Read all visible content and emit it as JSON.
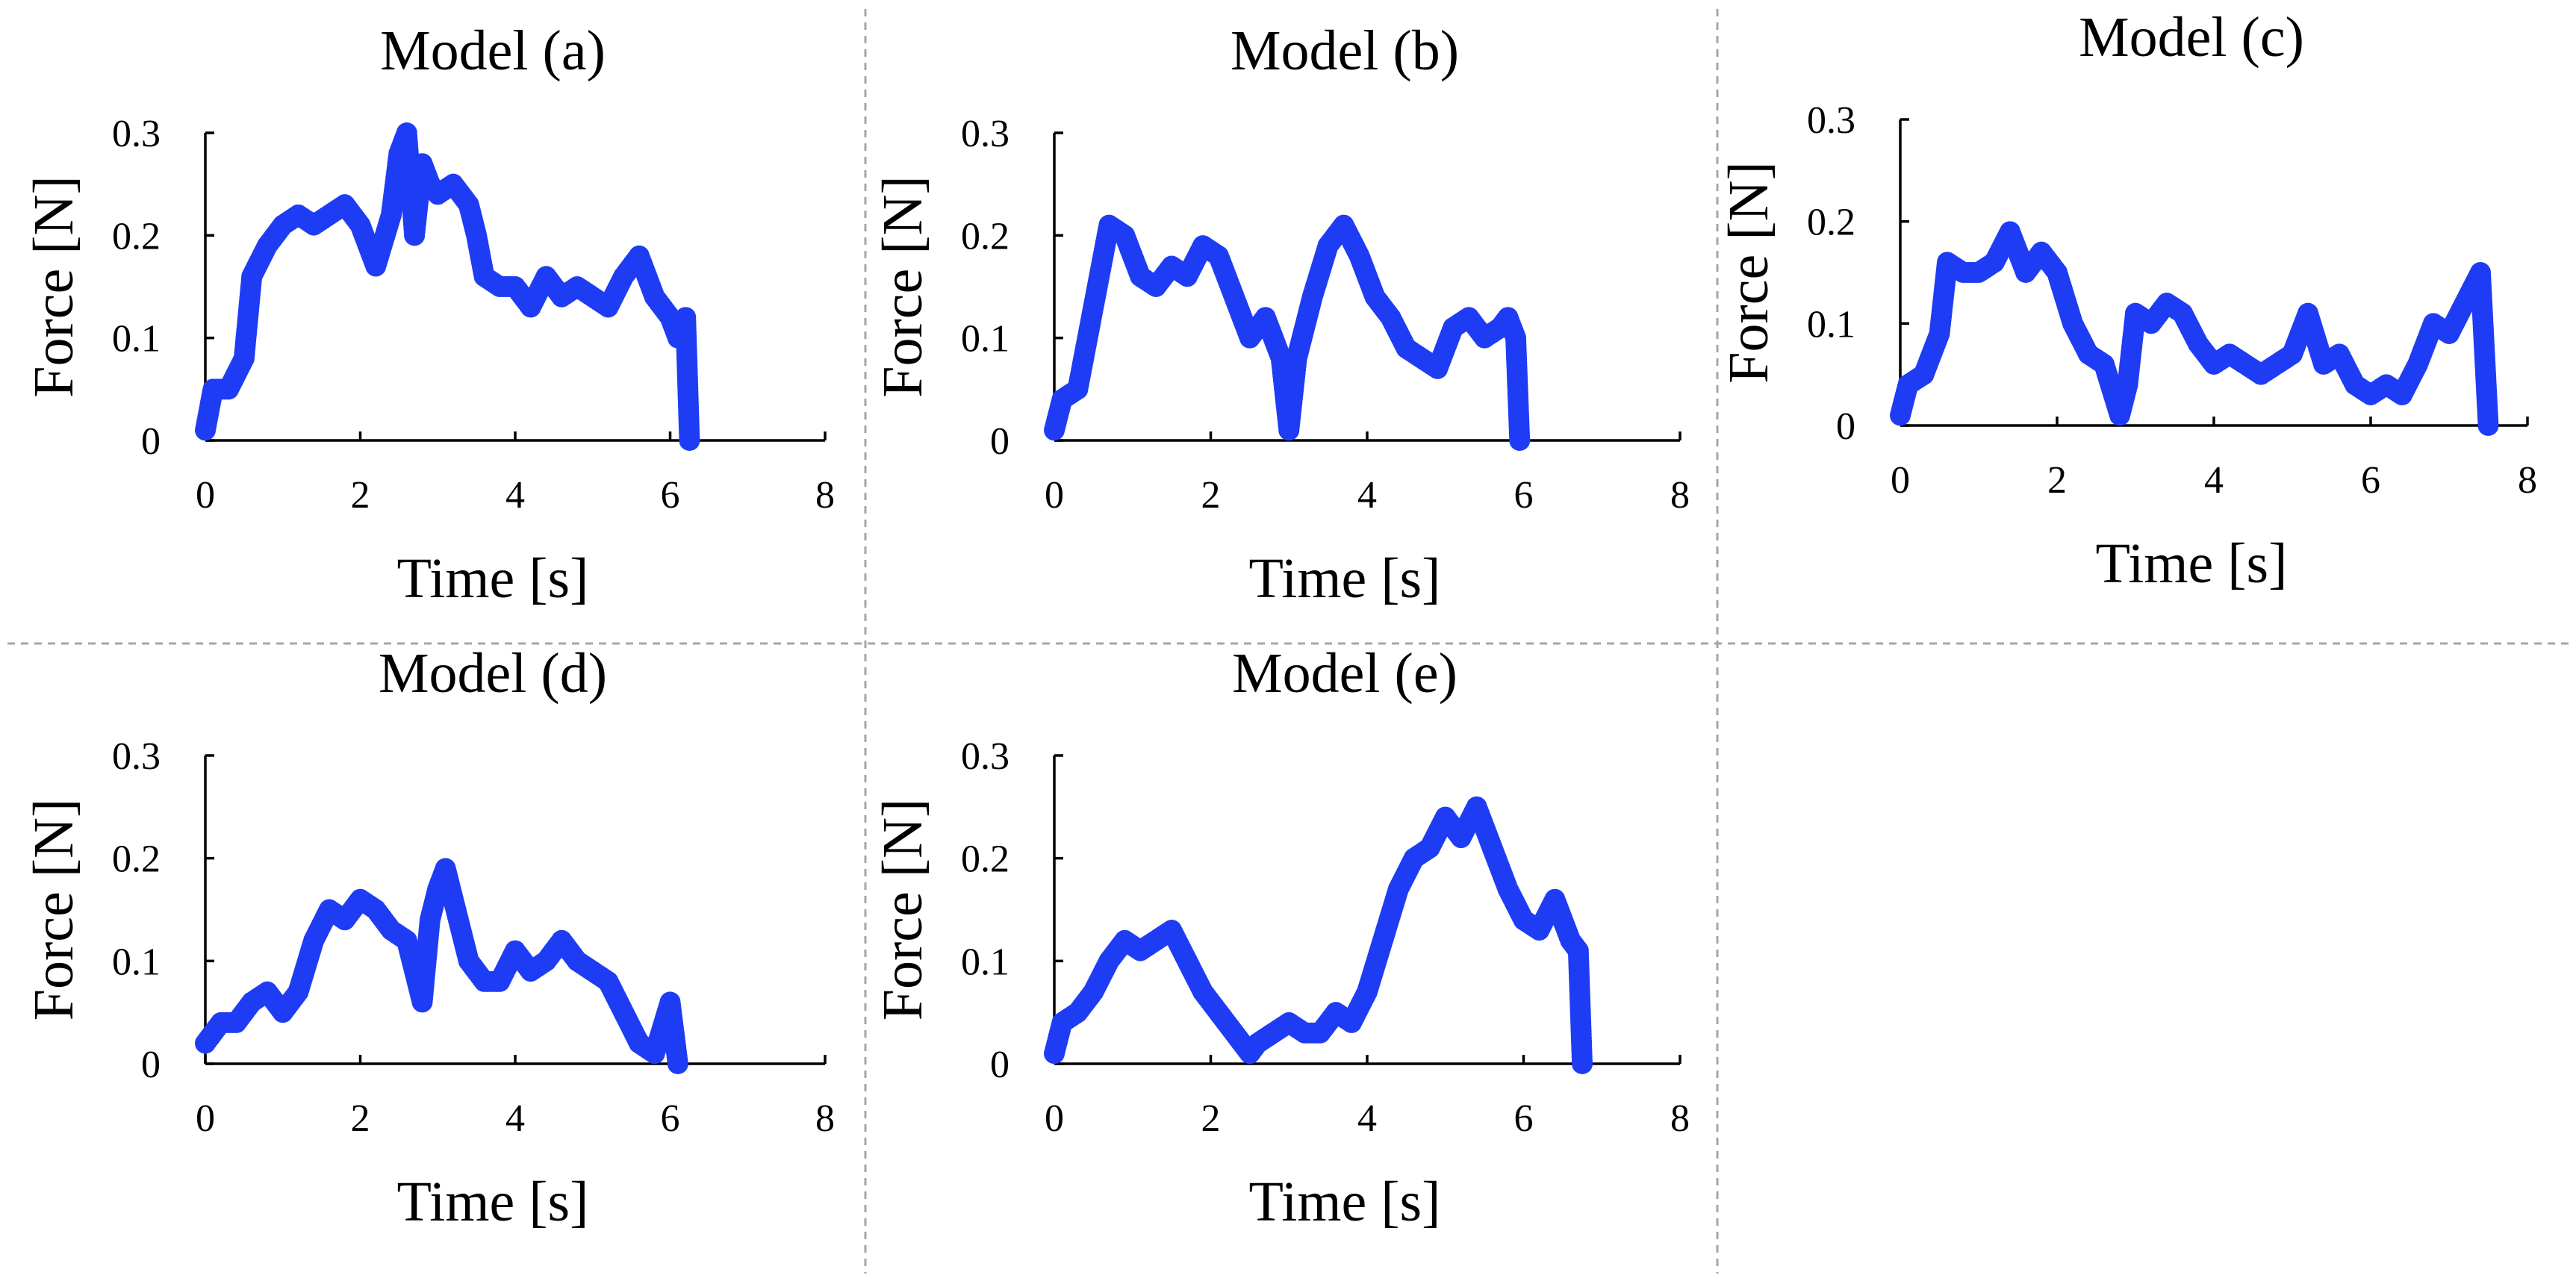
{
  "colors": {
    "series": "#1f3cf5",
    "axis": "#000000",
    "divider": "#a6a6a6"
  },
  "chart_data": [
    {
      "type": "scatter",
      "title": "Model (a)",
      "xlabel": "Time [s]",
      "ylabel": "Force [N]",
      "xlim": [
        0,
        8
      ],
      "ylim": [
        0,
        0.3
      ],
      "xticks": [
        0,
        2,
        4,
        6,
        8
      ],
      "xtick_labels": [
        "0",
        "2",
        "4",
        "6",
        "8"
      ],
      "yticks": [
        0,
        0.1,
        0.2,
        0.3
      ],
      "ytick_labels": [
        "0",
        "0.1",
        "0.2",
        "0.3"
      ],
      "x": [
        0.0,
        0.1,
        0.3,
        0.5,
        0.6,
        0.8,
        1.0,
        1.2,
        1.4,
        1.6,
        1.8,
        2.0,
        2.2,
        2.4,
        2.5,
        2.6,
        2.7,
        2.8,
        2.9,
        3.0,
        3.2,
        3.4,
        3.5,
        3.6,
        3.8,
        4.0,
        4.2,
        4.4,
        4.6,
        4.8,
        5.0,
        5.2,
        5.4,
        5.6,
        5.8,
        6.0,
        6.1,
        6.2,
        6.25
      ],
      "y": [
        0.01,
        0.05,
        0.05,
        0.08,
        0.16,
        0.19,
        0.21,
        0.22,
        0.21,
        0.22,
        0.23,
        0.21,
        0.17,
        0.22,
        0.28,
        0.3,
        0.2,
        0.27,
        0.25,
        0.24,
        0.25,
        0.23,
        0.2,
        0.16,
        0.15,
        0.15,
        0.13,
        0.16,
        0.14,
        0.15,
        0.14,
        0.13,
        0.16,
        0.18,
        0.14,
        0.12,
        0.1,
        0.12,
        0.0
      ]
    },
    {
      "type": "scatter",
      "title": "Model (b)",
      "xlabel": "Time [s]",
      "ylabel": "Force [N]",
      "xlim": [
        0,
        8
      ],
      "ylim": [
        0,
        0.3
      ],
      "xticks": [
        0,
        2,
        4,
        6,
        8
      ],
      "xtick_labels": [
        "0",
        "2",
        "4",
        "6",
        "8"
      ],
      "yticks": [
        0,
        0.1,
        0.2,
        0.3
      ],
      "ytick_labels": [
        "0",
        "0.1",
        "0.2",
        "0.3"
      ],
      "x": [
        0.0,
        0.1,
        0.3,
        0.5,
        0.7,
        0.9,
        1.1,
        1.3,
        1.5,
        1.7,
        1.9,
        2.1,
        2.3,
        2.5,
        2.7,
        2.9,
        3.0,
        3.1,
        3.3,
        3.5,
        3.7,
        3.9,
        4.1,
        4.3,
        4.5,
        4.7,
        4.9,
        5.1,
        5.3,
        5.5,
        5.7,
        5.8,
        5.9,
        5.95
      ],
      "y": [
        0.01,
        0.04,
        0.05,
        0.13,
        0.21,
        0.2,
        0.16,
        0.15,
        0.17,
        0.16,
        0.19,
        0.18,
        0.14,
        0.1,
        0.12,
        0.08,
        0.01,
        0.08,
        0.14,
        0.19,
        0.21,
        0.18,
        0.14,
        0.12,
        0.09,
        0.08,
        0.07,
        0.11,
        0.12,
        0.1,
        0.11,
        0.12,
        0.1,
        0.0
      ]
    },
    {
      "type": "scatter",
      "title": "Model (c)",
      "xlabel": "Time [s]",
      "ylabel": "Force [N]",
      "xlim": [
        0,
        8
      ],
      "ylim": [
        0,
        0.3
      ],
      "xticks": [
        0,
        2,
        4,
        6,
        8
      ],
      "xtick_labels": [
        "0",
        "2",
        "4",
        "6",
        "8"
      ],
      "yticks": [
        0,
        0.1,
        0.2,
        0.3
      ],
      "ytick_labels": [
        "0",
        "0.1",
        "0.2",
        "0.3"
      ],
      "x": [
        0.0,
        0.1,
        0.3,
        0.5,
        0.6,
        0.8,
        1.0,
        1.2,
        1.4,
        1.6,
        1.8,
        2.0,
        2.2,
        2.4,
        2.6,
        2.8,
        2.9,
        3.0,
        3.2,
        3.4,
        3.6,
        3.8,
        4.0,
        4.2,
        4.4,
        4.6,
        4.8,
        5.0,
        5.2,
        5.4,
        5.6,
        5.8,
        6.0,
        6.2,
        6.4,
        6.6,
        6.8,
        7.0,
        7.2,
        7.4,
        7.5
      ],
      "y": [
        0.01,
        0.04,
        0.05,
        0.09,
        0.16,
        0.15,
        0.15,
        0.16,
        0.19,
        0.15,
        0.17,
        0.15,
        0.1,
        0.07,
        0.06,
        0.01,
        0.04,
        0.11,
        0.1,
        0.12,
        0.11,
        0.08,
        0.06,
        0.07,
        0.06,
        0.05,
        0.06,
        0.07,
        0.11,
        0.06,
        0.07,
        0.04,
        0.03,
        0.04,
        0.03,
        0.06,
        0.1,
        0.09,
        0.12,
        0.15,
        0.0
      ]
    },
    {
      "type": "scatter",
      "title": "Model (d)",
      "xlabel": "Time [s]",
      "ylabel": "Force [N]",
      "xlim": [
        0,
        8
      ],
      "ylim": [
        0,
        0.3
      ],
      "xticks": [
        0,
        2,
        4,
        6,
        8
      ],
      "xtick_labels": [
        "0",
        "2",
        "4",
        "6",
        "8"
      ],
      "yticks": [
        0,
        0.1,
        0.2,
        0.3
      ],
      "ytick_labels": [
        "0",
        "0.1",
        "0.2",
        "0.3"
      ],
      "x": [
        0.0,
        0.2,
        0.4,
        0.6,
        0.8,
        1.0,
        1.2,
        1.4,
        1.6,
        1.8,
        2.0,
        2.2,
        2.4,
        2.6,
        2.8,
        2.9,
        3.0,
        3.1,
        3.2,
        3.4,
        3.6,
        3.8,
        4.0,
        4.2,
        4.4,
        4.6,
        4.8,
        5.0,
        5.2,
        5.4,
        5.6,
        5.8,
        6.0,
        6.1
      ],
      "y": [
        0.02,
        0.04,
        0.04,
        0.06,
        0.07,
        0.05,
        0.07,
        0.12,
        0.15,
        0.14,
        0.16,
        0.15,
        0.13,
        0.12,
        0.06,
        0.14,
        0.17,
        0.19,
        0.16,
        0.1,
        0.08,
        0.08,
        0.11,
        0.09,
        0.1,
        0.12,
        0.1,
        0.09,
        0.08,
        0.05,
        0.02,
        0.01,
        0.06,
        0.0
      ]
    },
    {
      "type": "scatter",
      "title": "Model (e)",
      "xlabel": "Time [s]",
      "ylabel": "Force [N]",
      "xlim": [
        0,
        8
      ],
      "ylim": [
        0,
        0.3
      ],
      "xticks": [
        0,
        2,
        4,
        6,
        8
      ],
      "xtick_labels": [
        "0",
        "2",
        "4",
        "6",
        "8"
      ],
      "yticks": [
        0,
        0.1,
        0.2,
        0.3
      ],
      "ytick_labels": [
        "0",
        "0.1",
        "0.2",
        "0.3"
      ],
      "x": [
        0.0,
        0.1,
        0.3,
        0.5,
        0.7,
        0.9,
        1.1,
        1.3,
        1.5,
        1.7,
        1.9,
        2.1,
        2.3,
        2.5,
        2.6,
        2.8,
        3.0,
        3.2,
        3.4,
        3.6,
        3.8,
        4.0,
        4.2,
        4.4,
        4.6,
        4.8,
        5.0,
        5.2,
        5.4,
        5.6,
        5.8,
        6.0,
        6.2,
        6.4,
        6.6,
        6.7,
        6.75
      ],
      "y": [
        0.01,
        0.04,
        0.05,
        0.07,
        0.1,
        0.12,
        0.11,
        0.12,
        0.13,
        0.1,
        0.07,
        0.05,
        0.03,
        0.01,
        0.02,
        0.03,
        0.04,
        0.03,
        0.03,
        0.05,
        0.04,
        0.07,
        0.12,
        0.17,
        0.2,
        0.21,
        0.24,
        0.22,
        0.25,
        0.21,
        0.17,
        0.14,
        0.13,
        0.16,
        0.12,
        0.11,
        0.0
      ]
    }
  ]
}
